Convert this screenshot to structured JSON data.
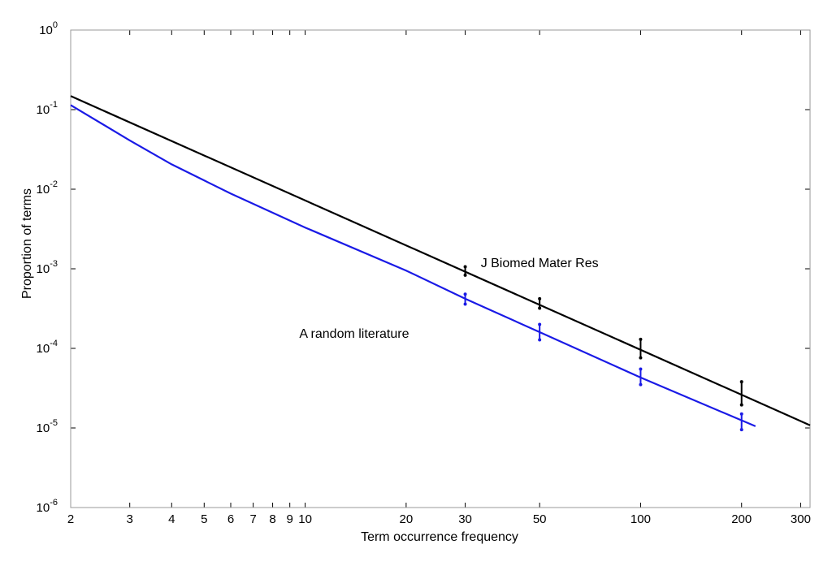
{
  "chart_data": {
    "type": "line",
    "title": "",
    "xlabel": "Term occurrence frequency",
    "ylabel": "Proportion of terms",
    "x_scale": "log",
    "y_scale": "log",
    "xlim": [
      2,
      320
    ],
    "ylim": [
      1e-06,
      1
    ],
    "grid": false,
    "x_ticks": [
      2,
      3,
      4,
      5,
      6,
      7,
      8,
      9,
      10,
      20,
      30,
      50,
      100,
      200,
      300
    ],
    "x_tick_labels": [
      "2",
      "3",
      "4",
      "5",
      "6",
      "7",
      "8",
      "9",
      "10",
      "20",
      "30",
      "50",
      "100",
      "200",
      "300"
    ],
    "y_ticks": [
      {
        "base": "10",
        "exp": "-6",
        "value": 1e-06
      },
      {
        "base": "10",
        "exp": "-5",
        "value": 1e-05
      },
      {
        "base": "10",
        "exp": "-4",
        "value": 0.0001
      },
      {
        "base": "10",
        "exp": "-3",
        "value": 0.001
      },
      {
        "base": "10",
        "exp": "-2",
        "value": 0.01
      },
      {
        "base": "10",
        "exp": "-1",
        "value": 0.1
      },
      {
        "base": "10",
        "exp": "0",
        "value": 1
      }
    ],
    "series": [
      {
        "color": "#000000",
        "line": {
          "x": [
            2,
            320
          ],
          "y": [
            0.148,
            1.08e-05
          ]
        },
        "error_bars": [
          {
            "x": 30,
            "y": 0.00092,
            "low": 0.00083,
            "high": 0.00106
          },
          {
            "x": 50,
            "y": 0.00036,
            "low": 0.00032,
            "high": 0.00042
          },
          {
            "x": 100,
            "y": 0.0001,
            "low": 7.6e-05,
            "high": 0.00013
          },
          {
            "x": 200,
            "y": 2.7e-05,
            "low": 1.95e-05,
            "high": 3.8e-05
          }
        ]
      },
      {
        "color": "#1a1ae6",
        "line": {
          "x": [
            2,
            3,
            4,
            6,
            10,
            20,
            30,
            50,
            100,
            220
          ],
          "y": [
            0.114,
            0.041,
            0.0205,
            0.0088,
            0.0033,
            0.00095,
            0.00042,
            0.00016,
            4.3e-05,
            1.05e-05
          ]
        },
        "error_bars": [
          {
            "x": 30,
            "y": 0.00042,
            "low": 0.00036,
            "high": 0.00048
          },
          {
            "x": 50,
            "y": 0.00016,
            "low": 0.000128,
            "high": 0.0002
          },
          {
            "x": 100,
            "y": 4.3e-05,
            "low": 3.5e-05,
            "high": 5.5e-05
          },
          {
            "x": 200,
            "y": 1.22e-05,
            "low": 9.5e-06,
            "high": 1.5e-05
          }
        ]
      }
    ],
    "annotations": [
      {
        "text": "J Biomed Mater Res",
        "x": 50,
        "y": 0.00105
      },
      {
        "text": "A random literature",
        "x": 14,
        "y": 0.000135
      }
    ]
  }
}
